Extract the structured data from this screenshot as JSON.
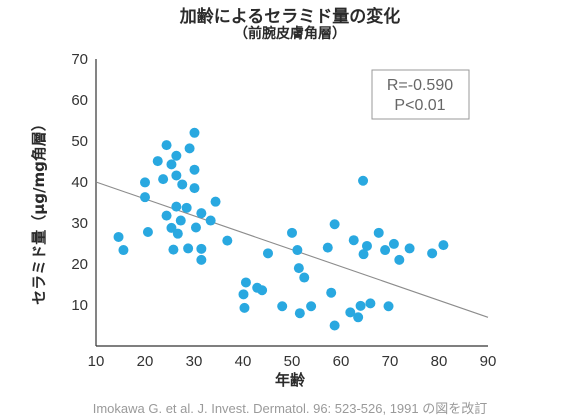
{
  "title": "加齢によるセラミド量の変化",
  "subtitle": "（前腕皮膚角層）",
  "citation": "Imokawa G. et al. J. Invest. Dermatol. 96: 523-526, 1991 の図を改訂",
  "colors": {
    "point": "#29a8e0",
    "regression": "#8c8c8c",
    "axis": "#333333",
    "stat_box": "#999999"
  },
  "chart_data": {
    "type": "scatter",
    "xlabel": "年齢",
    "ylabel": "セラミド量（μg/mg角層）",
    "xlim": [
      10,
      90
    ],
    "ylim": [
      0,
      70
    ],
    "xticks": [
      10,
      20,
      30,
      40,
      50,
      60,
      70,
      80,
      90
    ],
    "yticks": [
      10,
      20,
      30,
      40,
      50,
      60,
      70
    ],
    "grid": false,
    "annotation": {
      "r_text": "R=-0.590",
      "p_text": "P<0.01",
      "position": "top-right"
    },
    "regression_line": {
      "x": [
        10,
        90
      ],
      "y": [
        40,
        7
      ]
    },
    "points": [
      {
        "x": 14.6,
        "y": 26.6
      },
      {
        "x": 15.6,
        "y": 23.4
      },
      {
        "x": 20.0,
        "y": 39.9
      },
      {
        "x": 20.0,
        "y": 36.3
      },
      {
        "x": 20.6,
        "y": 27.8
      },
      {
        "x": 22.6,
        "y": 45.1
      },
      {
        "x": 23.7,
        "y": 40.7
      },
      {
        "x": 24.4,
        "y": 49.0
      },
      {
        "x": 24.4,
        "y": 31.8
      },
      {
        "x": 25.4,
        "y": 44.3
      },
      {
        "x": 25.4,
        "y": 28.8
      },
      {
        "x": 25.8,
        "y": 23.5
      },
      {
        "x": 26.4,
        "y": 46.4
      },
      {
        "x": 26.4,
        "y": 41.6
      },
      {
        "x": 26.4,
        "y": 34.0
      },
      {
        "x": 26.7,
        "y": 27.4
      },
      {
        "x": 27.3,
        "y": 30.6
      },
      {
        "x": 27.6,
        "y": 39.4
      },
      {
        "x": 28.5,
        "y": 33.7
      },
      {
        "x": 28.8,
        "y": 23.8
      },
      {
        "x": 29.1,
        "y": 48.2
      },
      {
        "x": 30.1,
        "y": 52.0
      },
      {
        "x": 30.1,
        "y": 43.0
      },
      {
        "x": 30.1,
        "y": 38.5
      },
      {
        "x": 30.4,
        "y": 28.9
      },
      {
        "x": 31.5,
        "y": 32.4
      },
      {
        "x": 31.5,
        "y": 23.7
      },
      {
        "x": 31.5,
        "y": 21.0
      },
      {
        "x": 33.4,
        "y": 30.6
      },
      {
        "x": 34.4,
        "y": 35.2
      },
      {
        "x": 36.8,
        "y": 25.7
      },
      {
        "x": 40.1,
        "y": 12.6
      },
      {
        "x": 40.3,
        "y": 9.3
      },
      {
        "x": 40.6,
        "y": 15.5
      },
      {
        "x": 42.9,
        "y": 14.2
      },
      {
        "x": 43.9,
        "y": 13.6
      },
      {
        "x": 45.1,
        "y": 22.6
      },
      {
        "x": 48.0,
        "y": 9.7
      },
      {
        "x": 50.0,
        "y": 27.6
      },
      {
        "x": 51.1,
        "y": 23.4
      },
      {
        "x": 51.4,
        "y": 19.0
      },
      {
        "x": 51.6,
        "y": 8.0
      },
      {
        "x": 52.5,
        "y": 16.7
      },
      {
        "x": 53.9,
        "y": 9.7
      },
      {
        "x": 57.3,
        "y": 24.0
      },
      {
        "x": 58.0,
        "y": 13.0
      },
      {
        "x": 58.7,
        "y": 29.7
      },
      {
        "x": 58.7,
        "y": 5.0
      },
      {
        "x": 61.9,
        "y": 8.2
      },
      {
        "x": 62.6,
        "y": 25.8
      },
      {
        "x": 63.5,
        "y": 7.0
      },
      {
        "x": 64.0,
        "y": 9.8
      },
      {
        "x": 64.5,
        "y": 40.3
      },
      {
        "x": 64.6,
        "y": 22.4
      },
      {
        "x": 65.3,
        "y": 24.4
      },
      {
        "x": 66.0,
        "y": 10.4
      },
      {
        "x": 67.7,
        "y": 27.6
      },
      {
        "x": 69.0,
        "y": 23.4
      },
      {
        "x": 69.7,
        "y": 9.7
      },
      {
        "x": 70.8,
        "y": 24.9
      },
      {
        "x": 71.9,
        "y": 21.0
      },
      {
        "x": 74.0,
        "y": 23.8
      },
      {
        "x": 78.6,
        "y": 22.6
      },
      {
        "x": 80.9,
        "y": 24.6
      }
    ]
  }
}
